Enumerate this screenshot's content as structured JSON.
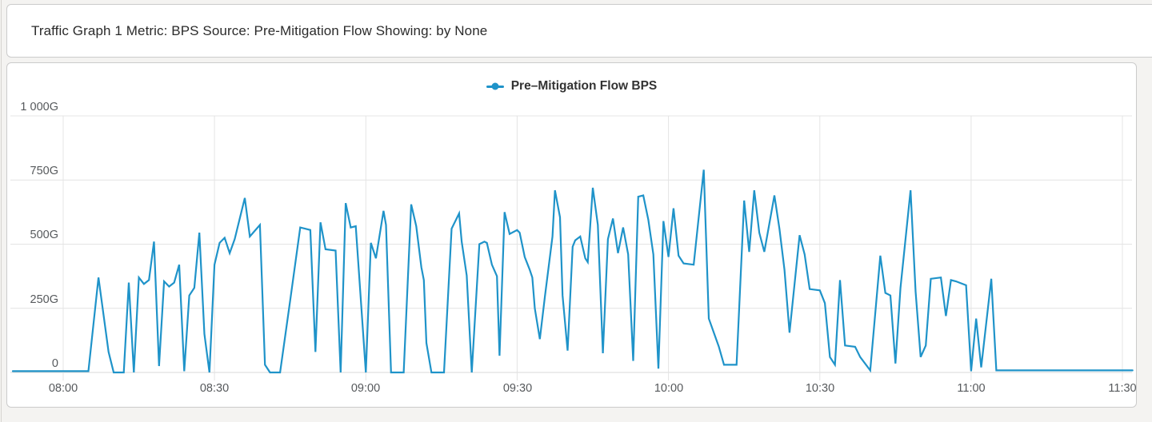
{
  "header": {
    "title": "Traffic Graph 1 Metric: BPS Source: Pre-Mitigation Flow Showing: by None"
  },
  "chart_data": {
    "type": "line",
    "legend_position": "top-center",
    "grid": true,
    "grid_color": "#e4e4e4",
    "axis_line_color": "#d8d8d8",
    "tick_label_color": "#56595c",
    "y_unit_suffix": "G",
    "ylim_gbps": [
      0,
      1000
    ],
    "y_ticks_gbps": [
      0,
      250,
      500,
      750,
      1000
    ],
    "y_tick_labels": [
      "1 000G",
      "750G",
      "500G",
      "250G",
      "0"
    ],
    "x_tick_labels": [
      "08:00",
      "08:30",
      "09:00",
      "09:30",
      "10:00",
      "10:30",
      "11:00",
      "11:30"
    ],
    "x_range": [
      "07:50",
      "11:32"
    ],
    "series": [
      {
        "name": "Pre–Mitigation Flow BPS",
        "color": "#1f93c9",
        "values_unit": "Gbps",
        "points": [
          [
            "07:50",
            5
          ],
          [
            "08:05",
            5
          ],
          [
            "08:07",
            370
          ],
          [
            "08:09",
            80
          ],
          [
            "08:10",
            0
          ],
          [
            "08:12",
            0
          ],
          [
            "08:13",
            350
          ],
          [
            "08:14",
            0
          ],
          [
            "08:15",
            370
          ],
          [
            "08:16",
            345
          ],
          [
            "08:17",
            360
          ],
          [
            "08:18",
            510
          ],
          [
            "08:19",
            25
          ],
          [
            "08:20",
            355
          ],
          [
            "08:21",
            335
          ],
          [
            "08:22",
            350
          ],
          [
            "08:23",
            420
          ],
          [
            "08:24",
            5
          ],
          [
            "08:25",
            300
          ],
          [
            "08:26",
            330
          ],
          [
            "08:27",
            545
          ],
          [
            "08:28",
            150
          ],
          [
            "08:29",
            0
          ],
          [
            "08:30",
            420
          ],
          [
            "08:31",
            505
          ],
          [
            "08:32",
            525
          ],
          [
            "08:33",
            465
          ],
          [
            "08:34",
            520
          ],
          [
            "08:36",
            680
          ],
          [
            "08:37",
            530
          ],
          [
            "08:39",
            575
          ],
          [
            "08:40",
            30
          ],
          [
            "08:41",
            0
          ],
          [
            "08:43",
            0
          ],
          [
            "08:45",
            280
          ],
          [
            "08:47",
            565
          ],
          [
            "08:49",
            555
          ],
          [
            "08:50",
            80
          ],
          [
            "08:51",
            585
          ],
          [
            "08:52",
            480
          ],
          [
            "08:54",
            475
          ],
          [
            "08:55",
            0
          ],
          [
            "08:56",
            660
          ],
          [
            "08:57",
            565
          ],
          [
            "08:58",
            570
          ],
          [
            "09:00",
            0
          ],
          [
            "09:01",
            505
          ],
          [
            "09:02",
            445
          ],
          [
            "09:03:30",
            630
          ],
          [
            "09:04",
            575
          ],
          [
            "09:05",
            0
          ],
          [
            "09:07:30",
            0
          ],
          [
            "09:09",
            655
          ],
          [
            "09:10",
            570
          ],
          [
            "09:11",
            410
          ],
          [
            "09:11:30",
            360
          ],
          [
            "09:12",
            115
          ],
          [
            "09:13",
            0
          ],
          [
            "09:15:30",
            0
          ],
          [
            "09:17",
            560
          ],
          [
            "09:18:30",
            620
          ],
          [
            "09:19",
            510
          ],
          [
            "09:20",
            378
          ],
          [
            "09:21",
            0
          ],
          [
            "09:22:30",
            500
          ],
          [
            "09:23:30",
            510
          ],
          [
            "09:24",
            505
          ],
          [
            "09:25",
            420
          ],
          [
            "09:26",
            375
          ],
          [
            "09:26:30",
            65
          ],
          [
            "09:27:30",
            625
          ],
          [
            "09:28:30",
            540
          ],
          [
            "09:30",
            555
          ],
          [
            "09:30:30",
            545
          ],
          [
            "09:31:30",
            450
          ],
          [
            "09:32:30",
            400
          ],
          [
            "09:33",
            370
          ],
          [
            "09:33:30",
            250
          ],
          [
            "09:34:30",
            130
          ],
          [
            "09:35:30",
            295
          ],
          [
            "09:37",
            530
          ],
          [
            "09:37:30",
            710
          ],
          [
            "09:38:30",
            605
          ],
          [
            "09:39",
            300
          ],
          [
            "09:40",
            85
          ],
          [
            "09:41",
            490
          ],
          [
            "09:41:30",
            515
          ],
          [
            "09:42:30",
            530
          ],
          [
            "09:43:30",
            445
          ],
          [
            "09:44",
            430
          ],
          [
            "09:45",
            720
          ],
          [
            "09:46",
            575
          ],
          [
            "09:47",
            75
          ],
          [
            "09:48",
            520
          ],
          [
            "09:49",
            600
          ],
          [
            "09:50",
            465
          ],
          [
            "09:51",
            565
          ],
          [
            "09:52",
            460
          ],
          [
            "09:53",
            45
          ],
          [
            "09:54",
            685
          ],
          [
            "09:55",
            690
          ],
          [
            "09:56",
            595
          ],
          [
            "09:57",
            460
          ],
          [
            "09:58",
            15
          ],
          [
            "09:59",
            590
          ],
          [
            "10:00",
            450
          ],
          [
            "10:01",
            640
          ],
          [
            "10:02",
            455
          ],
          [
            "10:03",
            425
          ],
          [
            "10:05",
            420
          ],
          [
            "10:07",
            790
          ],
          [
            "10:08",
            210
          ],
          [
            "10:09",
            155
          ],
          [
            "10:10",
            100
          ],
          [
            "10:11",
            30
          ],
          [
            "10:13:30",
            30
          ],
          [
            "10:15",
            670
          ],
          [
            "10:16",
            470
          ],
          [
            "10:17",
            710
          ],
          [
            "10:18",
            545
          ],
          [
            "10:19",
            470
          ],
          [
            "10:21",
            690
          ],
          [
            "10:22",
            560
          ],
          [
            "10:23",
            400
          ],
          [
            "10:24",
            155
          ],
          [
            "10:26",
            535
          ],
          [
            "10:27",
            460
          ],
          [
            "10:28",
            325
          ],
          [
            "10:30",
            320
          ],
          [
            "10:31",
            270
          ],
          [
            "10:32",
            60
          ],
          [
            "10:33",
            30
          ],
          [
            "10:34",
            360
          ],
          [
            "10:35",
            105
          ],
          [
            "10:37",
            100
          ],
          [
            "10:38",
            60
          ],
          [
            "10:40",
            8
          ],
          [
            "10:42",
            455
          ],
          [
            "10:43",
            310
          ],
          [
            "10:44",
            300
          ],
          [
            "10:45",
            35
          ],
          [
            "10:46",
            330
          ],
          [
            "10:48",
            710
          ],
          [
            "10:49",
            315
          ],
          [
            "10:50",
            60
          ],
          [
            "10:51",
            105
          ],
          [
            "10:52",
            365
          ],
          [
            "10:54",
            370
          ],
          [
            "10:55",
            220
          ],
          [
            "10:56",
            360
          ],
          [
            "10:57",
            355
          ],
          [
            "10:59",
            340
          ],
          [
            "11:00",
            5
          ],
          [
            "11:01",
            210
          ],
          [
            "11:02",
            20
          ],
          [
            "11:04",
            365
          ],
          [
            "11:05",
            8
          ],
          [
            "11:32",
            8
          ]
        ]
      }
    ]
  }
}
